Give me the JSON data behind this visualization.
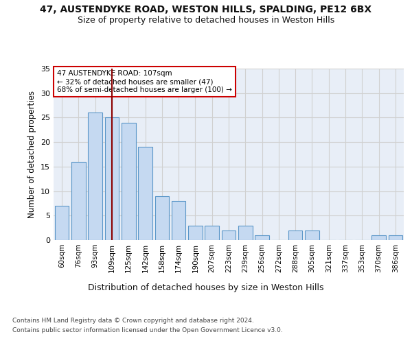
{
  "title_line1": "47, AUSTENDYKE ROAD, WESTON HILLS, SPALDING, PE12 6BX",
  "title_line2": "Size of property relative to detached houses in Weston Hills",
  "xlabel": "Distribution of detached houses by size in Weston Hills",
  "ylabel": "Number of detached properties",
  "footer_line1": "Contains HM Land Registry data © Crown copyright and database right 2024.",
  "footer_line2": "Contains public sector information licensed under the Open Government Licence v3.0.",
  "categories": [
    "60sqm",
    "76sqm",
    "93sqm",
    "109sqm",
    "125sqm",
    "142sqm",
    "158sqm",
    "174sqm",
    "190sqm",
    "207sqm",
    "223sqm",
    "239sqm",
    "256sqm",
    "272sqm",
    "288sqm",
    "305sqm",
    "321sqm",
    "337sqm",
    "353sqm",
    "370sqm",
    "386sqm"
  ],
  "values": [
    7,
    16,
    26,
    25,
    24,
    19,
    9,
    8,
    3,
    3,
    2,
    3,
    1,
    0,
    2,
    2,
    0,
    0,
    0,
    1,
    1
  ],
  "bar_color": "#c5d9f1",
  "bar_edge_color": "#5a96c8",
  "bar_edge_width": 0.8,
  "annotation_line": "47 AUSTENDYKE ROAD: 107sqm",
  "annotation_smaller": "← 32% of detached houses are smaller (47)",
  "annotation_larger": "68% of semi-detached houses are larger (100) →",
  "marker_color": "#8b0000",
  "annotation_box_color": "#ffffff",
  "annotation_box_edge": "#cc0000",
  "ylim": [
    0,
    35
  ],
  "yticks": [
    0,
    5,
    10,
    15,
    20,
    25,
    30,
    35
  ],
  "grid_color": "#d0d0d0",
  "bg_color": "#e8eef7",
  "fig_bg_color": "#ffffff",
  "title_fontsize": 10,
  "subtitle_fontsize": 9
}
